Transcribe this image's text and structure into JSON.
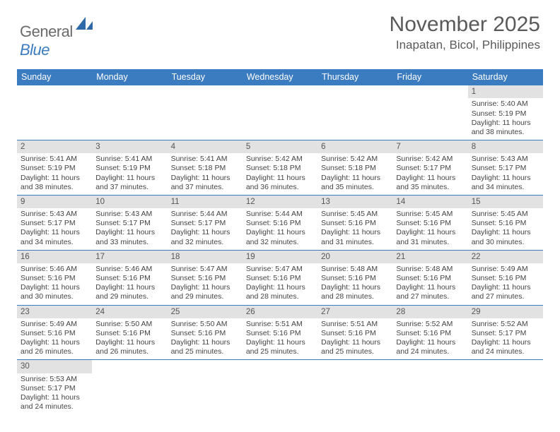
{
  "logo": {
    "general": "General",
    "blue": "Blue"
  },
  "title": "November 2025",
  "location": "Inapatan, Bicol, Philippines",
  "day_headers": [
    "Sunday",
    "Monday",
    "Tuesday",
    "Wednesday",
    "Thursday",
    "Friday",
    "Saturday"
  ],
  "colors": {
    "header_bg": "#3b7bbf",
    "header_text": "#ffffff",
    "daynum_bg": "#e2e2e2",
    "border": "#3b7bbf",
    "title_text": "#5a5a5a",
    "body_text": "#444444",
    "logo_gray": "#6a6a6a",
    "logo_blue": "#3b7bbf"
  },
  "weeks": [
    [
      null,
      null,
      null,
      null,
      null,
      null,
      {
        "n": "1",
        "sr": "Sunrise: 5:40 AM",
        "ss": "Sunset: 5:19 PM",
        "d1": "Daylight: 11 hours",
        "d2": "and 38 minutes."
      }
    ],
    [
      {
        "n": "2",
        "sr": "Sunrise: 5:41 AM",
        "ss": "Sunset: 5:19 PM",
        "d1": "Daylight: 11 hours",
        "d2": "and 38 minutes."
      },
      {
        "n": "3",
        "sr": "Sunrise: 5:41 AM",
        "ss": "Sunset: 5:19 PM",
        "d1": "Daylight: 11 hours",
        "d2": "and 37 minutes."
      },
      {
        "n": "4",
        "sr": "Sunrise: 5:41 AM",
        "ss": "Sunset: 5:18 PM",
        "d1": "Daylight: 11 hours",
        "d2": "and 37 minutes."
      },
      {
        "n": "5",
        "sr": "Sunrise: 5:42 AM",
        "ss": "Sunset: 5:18 PM",
        "d1": "Daylight: 11 hours",
        "d2": "and 36 minutes."
      },
      {
        "n": "6",
        "sr": "Sunrise: 5:42 AM",
        "ss": "Sunset: 5:18 PM",
        "d1": "Daylight: 11 hours",
        "d2": "and 35 minutes."
      },
      {
        "n": "7",
        "sr": "Sunrise: 5:42 AM",
        "ss": "Sunset: 5:17 PM",
        "d1": "Daylight: 11 hours",
        "d2": "and 35 minutes."
      },
      {
        "n": "8",
        "sr": "Sunrise: 5:43 AM",
        "ss": "Sunset: 5:17 PM",
        "d1": "Daylight: 11 hours",
        "d2": "and 34 minutes."
      }
    ],
    [
      {
        "n": "9",
        "sr": "Sunrise: 5:43 AM",
        "ss": "Sunset: 5:17 PM",
        "d1": "Daylight: 11 hours",
        "d2": "and 34 minutes."
      },
      {
        "n": "10",
        "sr": "Sunrise: 5:43 AM",
        "ss": "Sunset: 5:17 PM",
        "d1": "Daylight: 11 hours",
        "d2": "and 33 minutes."
      },
      {
        "n": "11",
        "sr": "Sunrise: 5:44 AM",
        "ss": "Sunset: 5:17 PM",
        "d1": "Daylight: 11 hours",
        "d2": "and 32 minutes."
      },
      {
        "n": "12",
        "sr": "Sunrise: 5:44 AM",
        "ss": "Sunset: 5:16 PM",
        "d1": "Daylight: 11 hours",
        "d2": "and 32 minutes."
      },
      {
        "n": "13",
        "sr": "Sunrise: 5:45 AM",
        "ss": "Sunset: 5:16 PM",
        "d1": "Daylight: 11 hours",
        "d2": "and 31 minutes."
      },
      {
        "n": "14",
        "sr": "Sunrise: 5:45 AM",
        "ss": "Sunset: 5:16 PM",
        "d1": "Daylight: 11 hours",
        "d2": "and 31 minutes."
      },
      {
        "n": "15",
        "sr": "Sunrise: 5:45 AM",
        "ss": "Sunset: 5:16 PM",
        "d1": "Daylight: 11 hours",
        "d2": "and 30 minutes."
      }
    ],
    [
      {
        "n": "16",
        "sr": "Sunrise: 5:46 AM",
        "ss": "Sunset: 5:16 PM",
        "d1": "Daylight: 11 hours",
        "d2": "and 30 minutes."
      },
      {
        "n": "17",
        "sr": "Sunrise: 5:46 AM",
        "ss": "Sunset: 5:16 PM",
        "d1": "Daylight: 11 hours",
        "d2": "and 29 minutes."
      },
      {
        "n": "18",
        "sr": "Sunrise: 5:47 AM",
        "ss": "Sunset: 5:16 PM",
        "d1": "Daylight: 11 hours",
        "d2": "and 29 minutes."
      },
      {
        "n": "19",
        "sr": "Sunrise: 5:47 AM",
        "ss": "Sunset: 5:16 PM",
        "d1": "Daylight: 11 hours",
        "d2": "and 28 minutes."
      },
      {
        "n": "20",
        "sr": "Sunrise: 5:48 AM",
        "ss": "Sunset: 5:16 PM",
        "d1": "Daylight: 11 hours",
        "d2": "and 28 minutes."
      },
      {
        "n": "21",
        "sr": "Sunrise: 5:48 AM",
        "ss": "Sunset: 5:16 PM",
        "d1": "Daylight: 11 hours",
        "d2": "and 27 minutes."
      },
      {
        "n": "22",
        "sr": "Sunrise: 5:49 AM",
        "ss": "Sunset: 5:16 PM",
        "d1": "Daylight: 11 hours",
        "d2": "and 27 minutes."
      }
    ],
    [
      {
        "n": "23",
        "sr": "Sunrise: 5:49 AM",
        "ss": "Sunset: 5:16 PM",
        "d1": "Daylight: 11 hours",
        "d2": "and 26 minutes."
      },
      {
        "n": "24",
        "sr": "Sunrise: 5:50 AM",
        "ss": "Sunset: 5:16 PM",
        "d1": "Daylight: 11 hours",
        "d2": "and 26 minutes."
      },
      {
        "n": "25",
        "sr": "Sunrise: 5:50 AM",
        "ss": "Sunset: 5:16 PM",
        "d1": "Daylight: 11 hours",
        "d2": "and 25 minutes."
      },
      {
        "n": "26",
        "sr": "Sunrise: 5:51 AM",
        "ss": "Sunset: 5:16 PM",
        "d1": "Daylight: 11 hours",
        "d2": "and 25 minutes."
      },
      {
        "n": "27",
        "sr": "Sunrise: 5:51 AM",
        "ss": "Sunset: 5:16 PM",
        "d1": "Daylight: 11 hours",
        "d2": "and 25 minutes."
      },
      {
        "n": "28",
        "sr": "Sunrise: 5:52 AM",
        "ss": "Sunset: 5:16 PM",
        "d1": "Daylight: 11 hours",
        "d2": "and 24 minutes."
      },
      {
        "n": "29",
        "sr": "Sunrise: 5:52 AM",
        "ss": "Sunset: 5:17 PM",
        "d1": "Daylight: 11 hours",
        "d2": "and 24 minutes."
      }
    ],
    [
      {
        "n": "30",
        "sr": "Sunrise: 5:53 AM",
        "ss": "Sunset: 5:17 PM",
        "d1": "Daylight: 11 hours",
        "d2": "and 24 minutes."
      },
      null,
      null,
      null,
      null,
      null,
      null
    ]
  ]
}
